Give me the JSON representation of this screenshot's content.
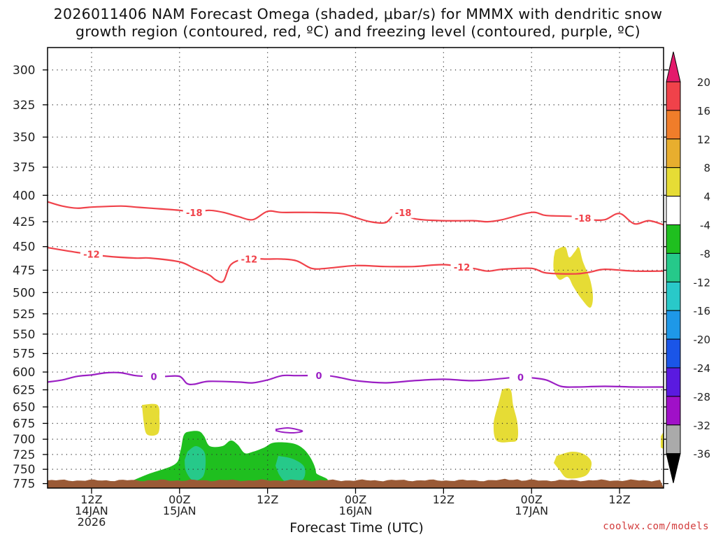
{
  "chart_data": {
    "type": "time-height cross section",
    "title_line1": "2026011406 NAM Forecast Omega (shaded, μbar/s) for MMMX with dendritic snow",
    "title_line2": "growth region (contoured, red, ºC) and freezing level (contoured, purple, ºC)",
    "xlabel": "Forecast Time (UTC)",
    "ylabel": "",
    "y_ticks": [
      "300",
      "325",
      "350",
      "375",
      "400",
      "425",
      "450",
      "475",
      "500",
      "525",
      "550",
      "575",
      "600",
      "625",
      "650",
      "675",
      "700",
      "725",
      "750",
      "775"
    ],
    "ylim_hpa": [
      285,
      783
    ],
    "xlim_hours_from_14JAN_00Z": [
      6,
      90
    ],
    "x_ticks": [
      {
        "hour": 12,
        "lines": [
          "12Z",
          "14JAN",
          "2026"
        ]
      },
      {
        "hour": 24,
        "lines": [
          "00Z",
          "15JAN"
        ]
      },
      {
        "hour": 36,
        "lines": [
          "12Z"
        ]
      },
      {
        "hour": 48,
        "lines": [
          "00Z",
          "16JAN"
        ]
      },
      {
        "hour": 60,
        "lines": [
          "12Z"
        ]
      },
      {
        "hour": 72,
        "lines": [
          "00Z",
          "17JAN"
        ]
      },
      {
        "hour": 84,
        "lines": [
          "12Z"
        ]
      }
    ],
    "colorbar": {
      "labels": [
        "20",
        "16",
        "12",
        "8",
        "4",
        "-4",
        "-8",
        "-12",
        "-16",
        "-20",
        "-24",
        "-28",
        "-32",
        "-36"
      ],
      "colors": [
        "#e31a6b",
        "#f0424a",
        "#f07d2a",
        "#e8ae2e",
        "#e6dc35",
        "#ffffff",
        "#1fbf1f",
        "#26c98a",
        "#29c9c9",
        "#1e98e8",
        "#1a55e8",
        "#5a1ae0",
        "#a010c8",
        "#aaaaaa",
        "#000000"
      ]
    },
    "series": [
      {
        "name": "-18C isotherm (dendritic growth upper bound)",
        "color": "#f0424a",
        "label": "-18",
        "points": [
          [
            6,
            406
          ],
          [
            8,
            410
          ],
          [
            10,
            412
          ],
          [
            12,
            411
          ],
          [
            16,
            410
          ],
          [
            18,
            411
          ],
          [
            20,
            412
          ],
          [
            24,
            414
          ],
          [
            26,
            416
          ],
          [
            28,
            414
          ],
          [
            30,
            416
          ],
          [
            32,
            420
          ],
          [
            34,
            423
          ],
          [
            36,
            415
          ],
          [
            38,
            416
          ],
          [
            42,
            416
          ],
          [
            46,
            417
          ],
          [
            48,
            421
          ],
          [
            50,
            425
          ],
          [
            52,
            426
          ],
          [
            53,
            420
          ],
          [
            54,
            414
          ],
          [
            56,
            422
          ],
          [
            60,
            424
          ],
          [
            64,
            424
          ],
          [
            66,
            425
          ],
          [
            68,
            423
          ],
          [
            72,
            416
          ],
          [
            74,
            419
          ],
          [
            78,
            420
          ],
          [
            80,
            423
          ],
          [
            82,
            423
          ],
          [
            84,
            417
          ],
          [
            86,
            427
          ],
          [
            88,
            424
          ],
          [
            90,
            428
          ]
        ],
        "label_hours": [
          26,
          54.5,
          79
        ]
      },
      {
        "name": "-12C isotherm (dendritic growth lower bound)",
        "color": "#f0424a",
        "label": "-12",
        "points": [
          [
            6,
            451
          ],
          [
            10,
            456
          ],
          [
            14,
            460
          ],
          [
            18,
            462
          ],
          [
            20,
            462
          ],
          [
            24,
            466
          ],
          [
            26,
            473
          ],
          [
            28,
            480
          ],
          [
            29,
            486
          ],
          [
            30,
            487
          ],
          [
            31,
            469
          ],
          [
            33,
            463
          ],
          [
            36,
            463
          ],
          [
            38,
            463
          ],
          [
            40,
            465
          ],
          [
            42,
            473
          ],
          [
            44,
            473
          ],
          [
            48,
            470
          ],
          [
            52,
            471
          ],
          [
            56,
            471
          ],
          [
            60,
            469
          ],
          [
            64,
            473
          ],
          [
            66,
            476
          ],
          [
            68,
            474
          ],
          [
            72,
            473
          ],
          [
            74,
            478
          ],
          [
            78,
            479
          ],
          [
            80,
            477
          ],
          [
            82,
            474
          ],
          [
            86,
            476
          ],
          [
            90,
            476
          ]
        ],
        "label_hours": [
          12,
          33.5,
          62.5
        ]
      },
      {
        "name": "0C isotherm (freezing level)",
        "color": "#9b1fc4",
        "label": "0",
        "points": [
          [
            6,
            614
          ],
          [
            8,
            611
          ],
          [
            10,
            606
          ],
          [
            12,
            604
          ],
          [
            14,
            601
          ],
          [
            16,
            601
          ],
          [
            18,
            605
          ],
          [
            20,
            606
          ],
          [
            22,
            606
          ],
          [
            24,
            606
          ],
          [
            25,
            616
          ],
          [
            26,
            617
          ],
          [
            28,
            613
          ],
          [
            32,
            614
          ],
          [
            34,
            615
          ],
          [
            36,
            611
          ],
          [
            38,
            605
          ],
          [
            40,
            605
          ],
          [
            44,
            605
          ],
          [
            46,
            608
          ],
          [
            48,
            612
          ],
          [
            52,
            615
          ],
          [
            56,
            612
          ],
          [
            60,
            610
          ],
          [
            64,
            612
          ],
          [
            68,
            609
          ],
          [
            70,
            607
          ],
          [
            72,
            608
          ],
          [
            74,
            611
          ],
          [
            76,
            620
          ],
          [
            78,
            621
          ],
          [
            82,
            620
          ],
          [
            86,
            621
          ],
          [
            90,
            621
          ]
        ],
        "label_hours": [
          20.5,
          43,
          70.5
        ]
      }
    ],
    "shaded_regions": [
      {
        "desc": "weak ascent -4 to -8",
        "color": "#1fbf1f"
      },
      {
        "desc": "ascent -8 to -12",
        "color": "#26c98a"
      },
      {
        "desc": "descent 4 to 8",
        "color": "#e6dc35"
      }
    ],
    "terrain_color": "#9a5a36"
  },
  "page": {
    "credit": "coolwx.com/models",
    "xlabel": "Forecast Time (UTC)"
  }
}
